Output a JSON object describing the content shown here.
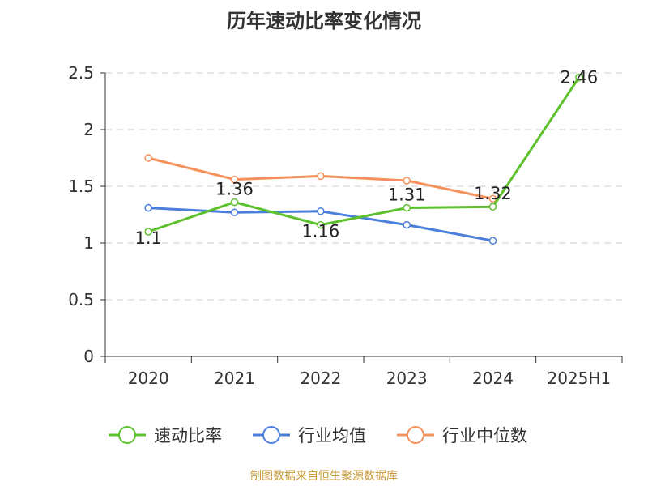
{
  "chart_data": {
    "type": "line",
    "title": "历年速动比率变化情况",
    "categories": [
      "2020",
      "2021",
      "2022",
      "2023",
      "2024",
      "2025H1"
    ],
    "ylim": [
      0,
      2.5
    ],
    "yticks": [
      "0",
      "0.5",
      "1",
      "1.5",
      "2",
      "2.5"
    ],
    "grid": true,
    "legend_position": "bottom",
    "series": [
      {
        "name": "速动比率",
        "color": "#5cc12c",
        "values": [
          1.1,
          1.36,
          1.16,
          1.31,
          1.32,
          2.46
        ],
        "labels": [
          "1.1",
          "1.36",
          "1.16",
          "1.31",
          "1.32",
          "2.46"
        ]
      },
      {
        "name": "行业均值",
        "color": "#4a7fdc",
        "values": [
          1.31,
          1.27,
          1.28,
          1.16,
          1.02,
          null
        ]
      },
      {
        "name": "行业中位数",
        "color": "#f5915a",
        "values": [
          1.75,
          1.56,
          1.59,
          1.55,
          1.39,
          null
        ]
      }
    ]
  },
  "source": "制图数据来自恒生聚源数据库"
}
